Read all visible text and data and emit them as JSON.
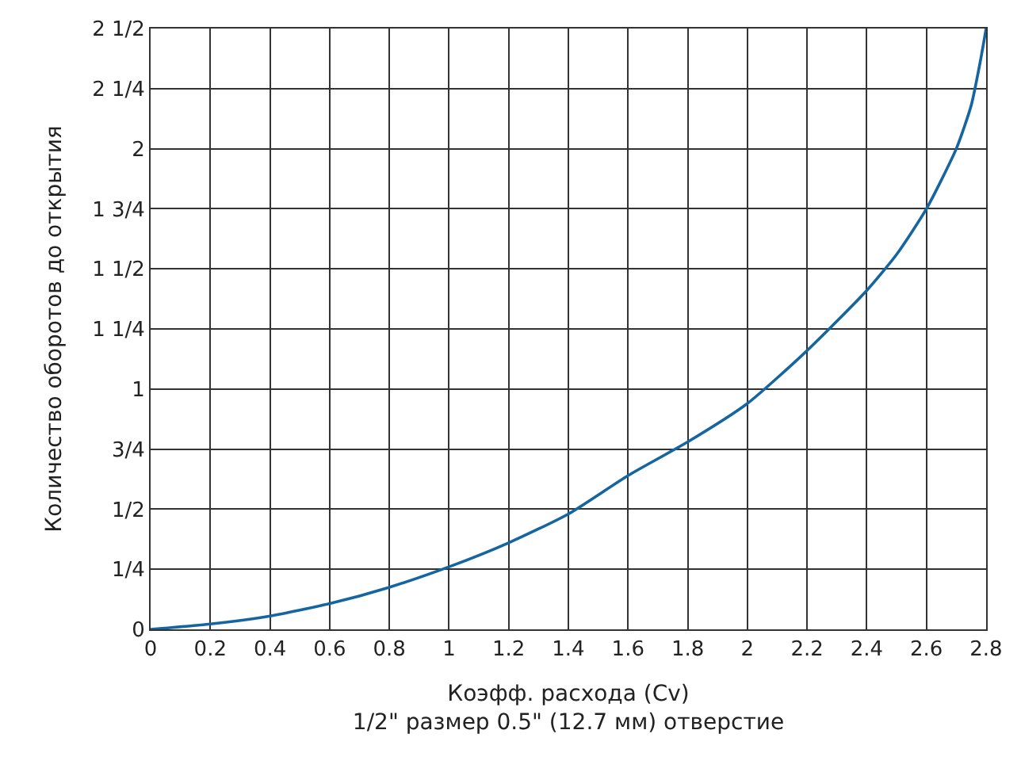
{
  "chart_data": {
    "type": "line",
    "xlabel": "Коэфф. расхода (Cv)\n1/2\" размер 0.5\" (12.7 мм) отверстие",
    "ylabel": "Количество оборотов до открытия",
    "x": [
      0,
      0.2,
      0.4,
      0.6,
      0.8,
      1.0,
      1.2,
      1.4,
      1.6,
      1.8,
      2.0,
      2.2,
      2.4,
      2.5,
      2.6,
      2.7,
      2.75,
      2.78,
      2.8
    ],
    "series": [
      {
        "color": "#1565a0",
        "values": [
          0,
          0.022,
          0.055,
          0.107,
          0.175,
          0.26,
          0.36,
          0.48,
          0.64,
          0.78,
          0.94,
          1.16,
          1.41,
          1.56,
          1.75,
          2.0,
          2.18,
          2.36,
          2.5
        ]
      }
    ],
    "xlim": [
      0,
      2.8
    ],
    "xticks": [
      0,
      0.2,
      0.4,
      0.6,
      0.8,
      1.0,
      1.2,
      1.4,
      1.6,
      1.8,
      2.0,
      2.2,
      2.4,
      2.6,
      2.8
    ],
    "ylim": [
      0,
      2.5
    ],
    "yticks": [
      0,
      {
        "value": 0.25,
        "label": "1/4"
      },
      {
        "value": 0.5,
        "label": "1/2"
      },
      {
        "value": 0.75,
        "label": "3/4"
      },
      1,
      {
        "value": 1.25,
        "label": "1 1/4"
      },
      {
        "value": 1.5,
        "label": "1 1/2"
      },
      {
        "value": 1.75,
        "label": "1 3/4"
      },
      2,
      {
        "value": 2.25,
        "label": "2 1/4"
      },
      {
        "value": 2.5,
        "label": "2 1/2"
      }
    ],
    "grid": true,
    "legend": false,
    "marker": "none",
    "line_style": "solid"
  }
}
